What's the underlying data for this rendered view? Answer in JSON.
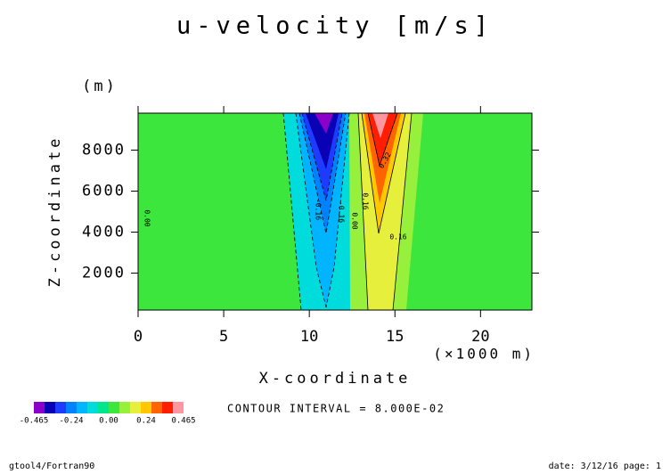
{
  "chart_data": {
    "type": "contour",
    "title": "u-velocity [m/s]",
    "y_unit": "(m)",
    "y_label": "Z-coordinate",
    "x_label": "X-coordinate",
    "x_unit": "(×1000 m)",
    "xlim": [
      0,
      23
    ],
    "xticks": [
      0,
      5,
      10,
      15,
      20
    ],
    "ylim": [
      200,
      9800
    ],
    "yticks": [
      2000,
      4000,
      6000,
      8000
    ],
    "contour_labels": [
      "0.00",
      "-0.16",
      "-0.16",
      "0.00",
      "0.16",
      "0.32",
      "0.16"
    ],
    "contour_interval": "CONTOUR INTERVAL = 8.000E-02",
    "colorbar": {
      "colors": [
        "#8a00c8",
        "#0a00b4",
        "#1e3cff",
        "#0082ff",
        "#00b4ff",
        "#00dcdc",
        "#00e68c",
        "#3ce63c",
        "#96f03c",
        "#e6f03c",
        "#ffc800",
        "#ff6400",
        "#ff1e00",
        "#ff96a0"
      ],
      "labels": [
        "-0.465",
        "-0.24",
        "0.00",
        "0.24",
        "0.465"
      ]
    },
    "footer_left": "gtool4/Fortran90",
    "footer_right": "date: 3/12/16 page: 1"
  }
}
